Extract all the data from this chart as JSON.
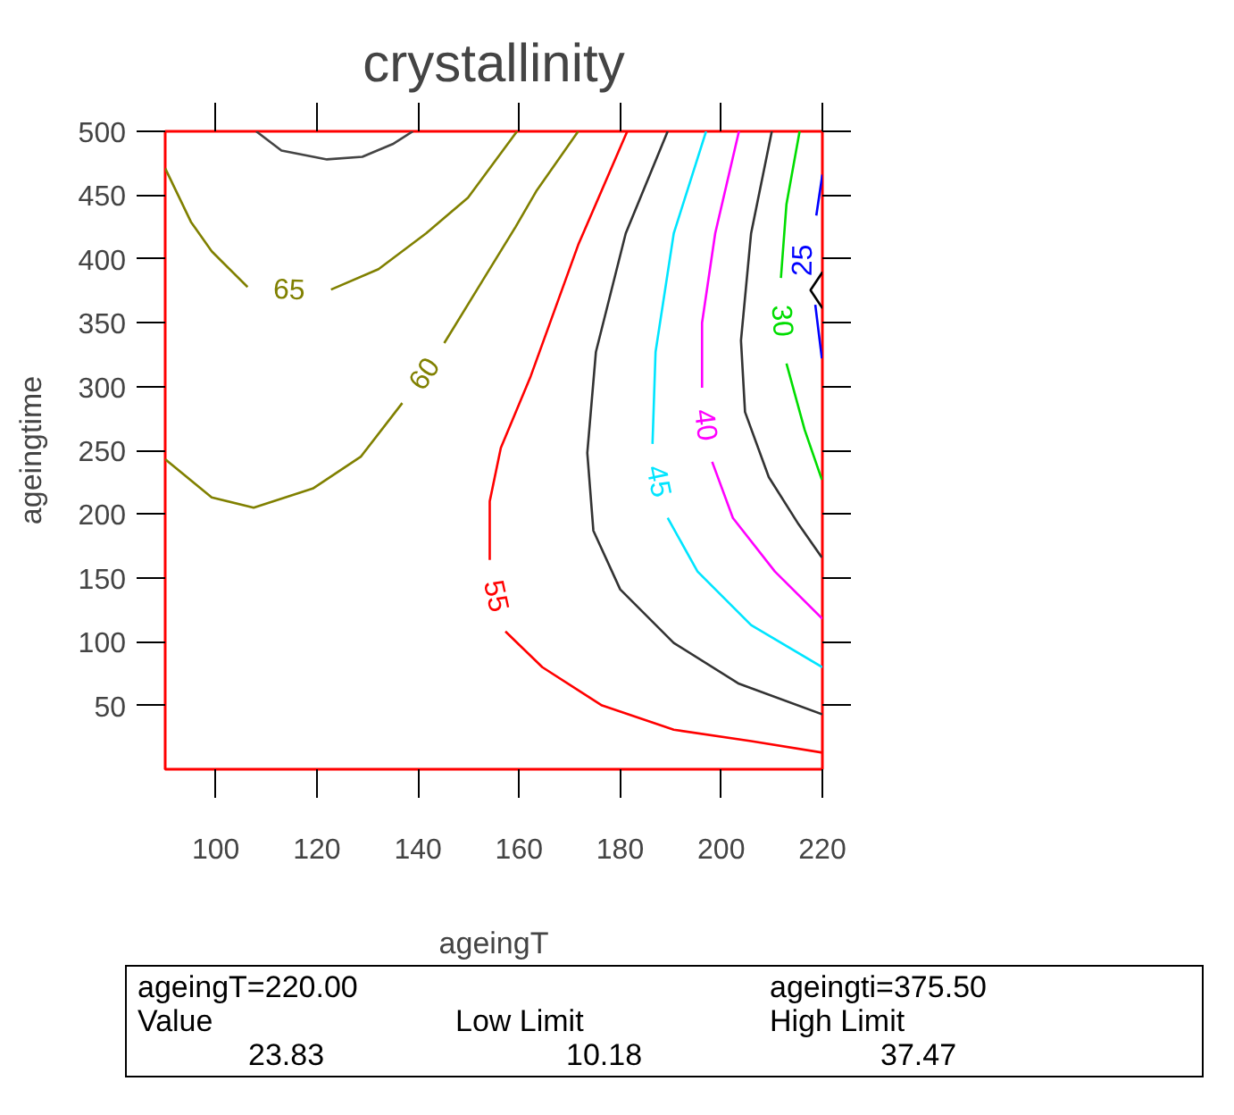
{
  "chart_data": {
    "type": "line",
    "title": "crystallinity",
    "xlabel": "ageingT",
    "ylabel": "ageingtime",
    "xlim": [
      90,
      220
    ],
    "ylim": [
      0,
      500
    ],
    "xticks": [
      100,
      120,
      140,
      160,
      180,
      200,
      220
    ],
    "yticks": [
      50,
      100,
      150,
      200,
      250,
      300,
      350,
      400,
      450,
      500
    ],
    "grid": false,
    "series": [
      {
        "color": "#444444",
        "x": [
          108,
          113,
          122,
          129,
          135,
          139
        ],
        "values": [
          500,
          485,
          478,
          480,
          490,
          500
        ]
      },
      {
        "name": "65",
        "color": "#808000",
        "x": [
          90,
          95.1,
          99.2,
          106.3,
          null,
          122.8,
          132.2,
          141.6,
          149.9,
          159.6
        ],
        "values": [
          471,
          429,
          406,
          378,
          null,
          376,
          392,
          420,
          448,
          500
        ]
      },
      {
        "name": "60",
        "color": "#808000",
        "x": [
          90,
          99.2,
          107.5,
          119.2,
          128.7,
          136.9,
          null,
          145.2,
          153.4,
          159.3,
          163.4,
          171.7
        ],
        "values": [
          243,
          213,
          205,
          220,
          245,
          287,
          null,
          334,
          387,
          425,
          453,
          500
        ]
      },
      {
        "name": "55",
        "color": "#ff0000",
        "x": [
          181.4,
          171.7,
          162.3,
          156.4,
          154.2,
          154.2,
          null,
          157.3,
          164.6,
          176.4,
          190.6,
          205.9,
          220
        ],
        "values": [
          500,
          411,
          308,
          252,
          210,
          164,
          null,
          108,
          80,
          50,
          31,
          22,
          13
        ]
      },
      {
        "color": "#333333",
        "x": [
          189.4,
          181.1,
          175.2,
          173.5,
          174.7,
          180,
          190.6,
          203.5,
          220
        ],
        "values": [
          500,
          420,
          327,
          248,
          187,
          141,
          99,
          67,
          43
        ]
      },
      {
        "name": "45",
        "color": "#00e5ff",
        "x": [
          197,
          190.6,
          187,
          186.4,
          null,
          189.4,
          195.3,
          205.9,
          220
        ],
        "values": [
          500,
          420,
          327,
          255,
          null,
          197,
          155,
          113,
          80
        ]
      },
      {
        "name": "40",
        "color": "#ff00ff",
        "x": [
          203.5,
          198.8,
          196.2,
          196.2,
          null,
          198.2,
          202.3,
          210.6,
          220
        ],
        "values": [
          500,
          420,
          350,
          299,
          null,
          241,
          197,
          155,
          118
        ]
      },
      {
        "color": "#333333",
        "x": [
          210,
          205.9,
          203.9,
          204.7,
          209.4,
          215.3,
          219.9
        ],
        "values": [
          500,
          420,
          336,
          280,
          229,
          192,
          166
        ]
      },
      {
        "name": "30",
        "color": "#00dd00",
        "x": [
          215.5,
          212.9,
          211.8,
          null,
          212.9,
          216.5,
          219.9
        ],
        "values": [
          500,
          443,
          385,
          null,
          318,
          266,
          227
        ]
      },
      {
        "name": "25",
        "color": "#0000ff",
        "x": [
          220,
          218.8,
          null,
          218.6,
          219.9
        ],
        "values": [
          466,
          434,
          null,
          364,
          322
        ]
      },
      {
        "type": "scatter",
        "marker": "diamond",
        "color": "#000000",
        "x": [
          220
        ],
        "values": [
          375.5
        ]
      }
    ],
    "annotations": [
      "ageingT=220.00",
      "ageingti=375.50",
      "Value",
      "Low Limit",
      "High Limit",
      "23.83",
      "10.18",
      "37.47"
    ]
  }
}
